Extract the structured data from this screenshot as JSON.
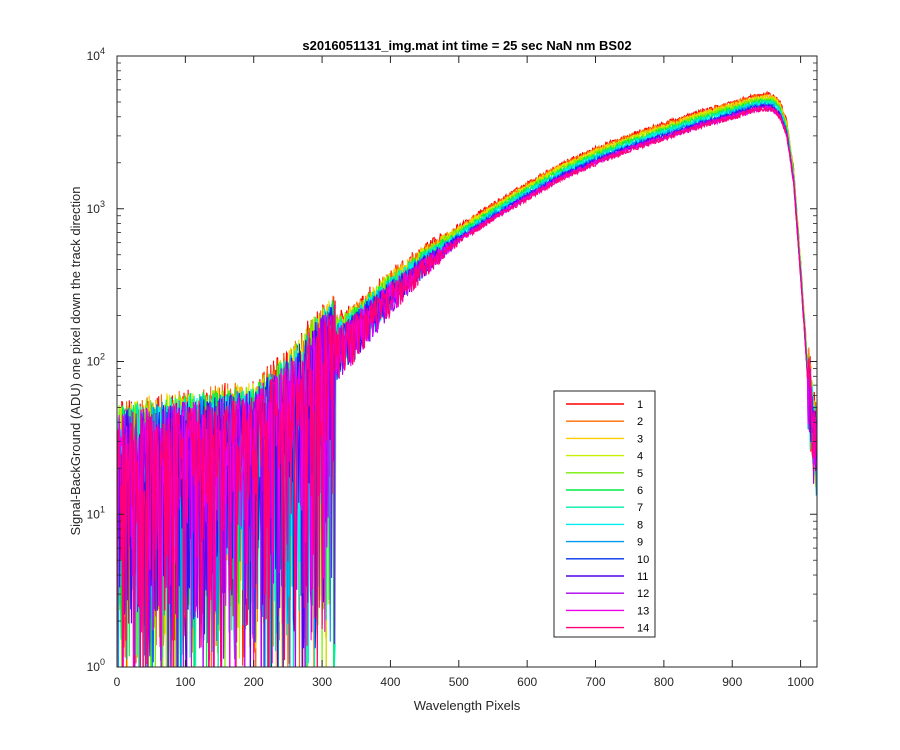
{
  "chart_data": {
    "type": "line",
    "title": "s2016051131_img.mat int time = 25 sec  NaN nm BS02",
    "xlabel": "Wavelength Pixels",
    "ylabel": "Signal-BackGround (ADU) one pixel down the track direction",
    "xlim": [
      0,
      1024
    ],
    "ylim": [
      1,
      10000
    ],
    "yscale": "log",
    "x_ticks": [
      0,
      100,
      200,
      300,
      400,
      500,
      600,
      700,
      800,
      900,
      1000
    ],
    "y_ticks": [
      {
        "value": 1,
        "base": "10",
        "exp": "0"
      },
      {
        "value": 10,
        "base": "10",
        "exp": "1"
      },
      {
        "value": 100,
        "base": "10",
        "exp": "2"
      },
      {
        "value": 1000,
        "base": "10",
        "exp": "3"
      },
      {
        "value": 10000,
        "base": "10",
        "exp": "4"
      }
    ],
    "grid": false,
    "legend_position": "lower-right",
    "series_shape": {
      "x": [
        0,
        50,
        100,
        150,
        200,
        250,
        280,
        300,
        350,
        400,
        450,
        500,
        550,
        600,
        650,
        700,
        750,
        800,
        850,
        900,
        930,
        950,
        960,
        970,
        980,
        990,
        1000,
        1010,
        1020,
        1023
      ],
      "y": [
        25,
        28,
        30,
        32,
        35,
        55,
        85,
        110,
        170,
        290,
        460,
        680,
        950,
        1300,
        1750,
        2200,
        2700,
        3200,
        3800,
        4400,
        4850,
        5000,
        4900,
        4400,
        3300,
        1600,
        400,
        90,
        35,
        30
      ]
    },
    "series": [
      {
        "name": "1",
        "color": "#ff0000",
        "scale": 1.12
      },
      {
        "name": "2",
        "color": "#ff6a00",
        "scale": 1.1
      },
      {
        "name": "3",
        "color": "#ffcc00",
        "scale": 1.08
      },
      {
        "name": "4",
        "color": "#ccee00",
        "scale": 1.06
      },
      {
        "name": "5",
        "color": "#77ee00",
        "scale": 1.04
      },
      {
        "name": "6",
        "color": "#00ee44",
        "scale": 1.02
      },
      {
        "name": "7",
        "color": "#00eeaa",
        "scale": 1.0
      },
      {
        "name": "8",
        "color": "#00eeee",
        "scale": 0.98
      },
      {
        "name": "9",
        "color": "#0099ee",
        "scale": 0.96
      },
      {
        "name": "10",
        "color": "#0033ee",
        "scale": 0.94
      },
      {
        "name": "11",
        "color": "#5500ee",
        "scale": 0.93
      },
      {
        "name": "12",
        "color": "#aa00ee",
        "scale": 0.92
      },
      {
        "name": "13",
        "color": "#ee00ee",
        "scale": 0.91
      },
      {
        "name": "14",
        "color": "#ff0077",
        "scale": 0.9
      }
    ]
  }
}
